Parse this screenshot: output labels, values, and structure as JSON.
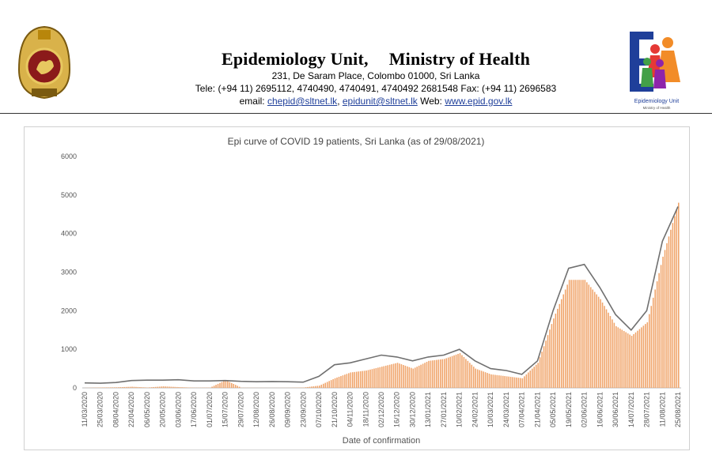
{
  "letterhead": {
    "unit": "Epidemiology Unit,",
    "ministry": "Ministry of Health",
    "address": "231, De Saram Place, Colombo 01000, Sri Lanka",
    "tele": "Tele: (+94 11) 2695112, 4740490, 4740491, 4740492 2681548  Fax: (+94 11) 2696583",
    "email_label": "email: ",
    "email1": "chepid@sltnet.lk",
    "sep": ", ",
    "email2": "epidunit@sltnet.lk",
    "web_label": " Web: ",
    "web": "www.epid.gov.lk"
  },
  "logo": {
    "caption": "Epidemiology Unit",
    "subcaption": "Ministry of Health"
  },
  "colors": {
    "bar": "#f0a46a",
    "line": "#707070",
    "rule": "#333333",
    "link": "#1f3f9a"
  },
  "chart_data": {
    "type": "bar",
    "title": "Epi curve of COVID 19 patients, Sri Lanka  (as of 29/08/2021)",
    "xlabel": "Date of confirmation",
    "ylabel": "",
    "ylim": [
      0,
      6000
    ],
    "yticks": [
      0,
      1000,
      2000,
      3000,
      4000,
      5000,
      6000
    ],
    "grid": false,
    "legend": "none",
    "tick_labels": [
      "11/03/2020",
      "25/03/2020",
      "08/04/2020",
      "22/04/2020",
      "06/05/2020",
      "20/05/2020",
      "03/06/2020",
      "17/06/2020",
      "01/07/2020",
      "15/07/2020",
      "29/07/2020",
      "12/08/2020",
      "26/08/2020",
      "09/09/2020",
      "23/09/2020",
      "07/10/2020",
      "21/10/2020",
      "04/11/2020",
      "18/11/2020",
      "02/12/2020",
      "16/12/2020",
      "30/12/2020",
      "13/01/2021",
      "27/01/2021",
      "10/02/2021",
      "24/02/2021",
      "10/03/2021",
      "24/03/2021",
      "07/04/2021",
      "21/04/2021",
      "05/05/2021",
      "19/05/2021",
      "02/06/2021",
      "16/06/2021",
      "30/06/2021",
      "14/07/2021",
      "28/07/2021",
      "11/08/2021",
      "25/08/2021"
    ],
    "series": [
      {
        "kind": "daily_cases_bars",
        "values_at_ticks": [
          2,
          10,
          15,
          30,
          10,
          40,
          20,
          5,
          8,
          200,
          5,
          3,
          2,
          3,
          10,
          60,
          250,
          400,
          450,
          550,
          650,
          500,
          700,
          750,
          900,
          500,
          350,
          300,
          250,
          650,
          1800,
          2800,
          2800,
          2300,
          1600,
          1350,
          1700,
          3400,
          4800
        ]
      },
      {
        "kind": "moving_average_line",
        "values_at_ticks": [
          130,
          120,
          140,
          190,
          200,
          200,
          210,
          180,
          180,
          190,
          170,
          160,
          165,
          160,
          150,
          300,
          600,
          650,
          750,
          850,
          800,
          700,
          800,
          850,
          1000,
          700,
          500,
          450,
          350,
          700,
          2000,
          3100,
          3200,
          2600,
          1900,
          1500,
          2000,
          3800,
          4700
        ]
      }
    ]
  }
}
